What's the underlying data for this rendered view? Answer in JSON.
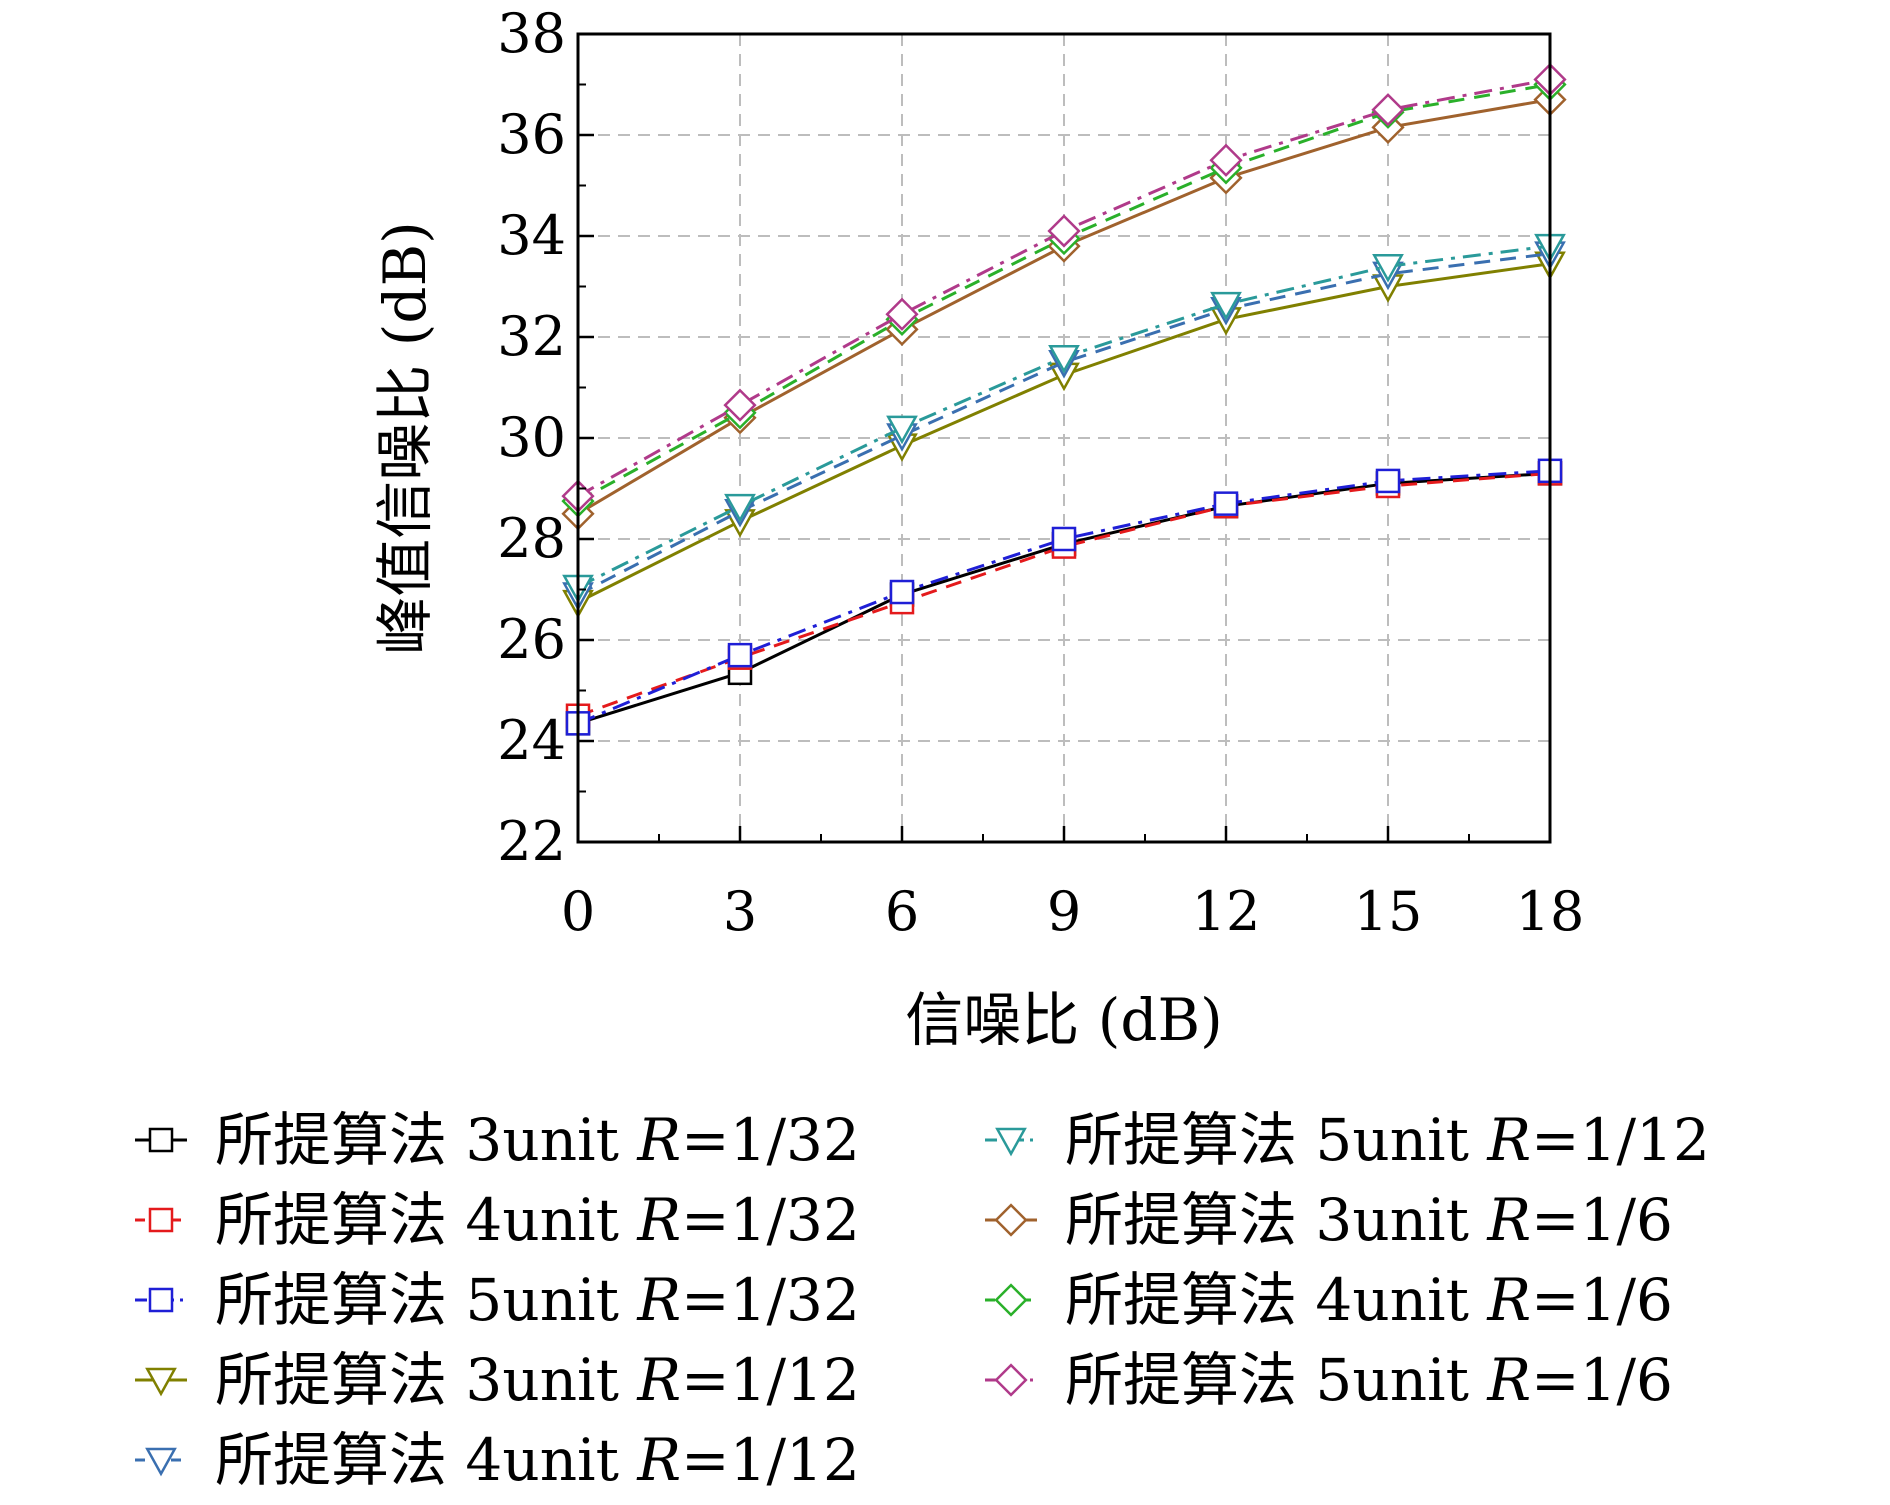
{
  "chart_data": {
    "type": "line",
    "title": "",
    "xlabel": "信噪比 (dB)",
    "ylabel": "峰值信噪比 (dB)",
    "x": [
      0,
      3,
      6,
      9,
      12,
      15,
      18
    ],
    "xticks": [
      "0",
      "3",
      "6",
      "9",
      "12",
      "15",
      "18"
    ],
    "yticks": [
      "22",
      "24",
      "26",
      "28",
      "30",
      "32",
      "34",
      "36",
      "38"
    ],
    "xlim": [
      0,
      18
    ],
    "ylim": [
      22,
      38
    ],
    "grid": true,
    "legend_position": "bottom",
    "series": [
      {
        "name": "所提算法 3unit R=1/32",
        "label_prefix": "所提算法 3unit ",
        "label_var": "R",
        "label_suffix": "=1/32",
        "color": "#000000",
        "marker": "square",
        "dash": "solid",
        "values": [
          24.35,
          25.35,
          26.9,
          27.9,
          28.65,
          29.1,
          29.3
        ]
      },
      {
        "name": "所提算法 4unit R=1/32",
        "label_prefix": "所提算法 4unit ",
        "label_var": "R",
        "label_suffix": "=1/32",
        "color": "#e41a1c",
        "marker": "square",
        "dash": "dashed",
        "values": [
          24.5,
          25.65,
          26.75,
          27.85,
          28.65,
          29.05,
          29.3
        ]
      },
      {
        "name": "所提算法 5unit R=1/32",
        "label_prefix": "所提算法 5unit ",
        "label_var": "R",
        "label_suffix": "=1/32",
        "color": "#1f1fd6",
        "marker": "square",
        "dash": "dashdot",
        "values": [
          24.35,
          25.7,
          26.95,
          28.0,
          28.7,
          29.15,
          29.35
        ]
      },
      {
        "name": "所提算法 3unit R=1/12",
        "label_prefix": "所提算法 3unit ",
        "label_var": "R",
        "label_suffix": "=1/12",
        "color": "#808000",
        "marker": "triangle-down",
        "dash": "solid",
        "values": [
          26.75,
          28.35,
          29.85,
          31.25,
          32.35,
          33.0,
          33.45
        ]
      },
      {
        "name": "所提算法 4unit R=1/12",
        "label_prefix": "所提算法 4unit ",
        "label_var": "R",
        "label_suffix": "=1/12",
        "color": "#3a6fb0",
        "marker": "triangle-down",
        "dash": "dashed",
        "values": [
          26.9,
          28.55,
          30.05,
          31.5,
          32.55,
          33.25,
          33.65
        ]
      },
      {
        "name": "所提算法 5unit R=1/12",
        "label_prefix": "所提算法 5unit ",
        "label_var": "R",
        "label_suffix": "=1/12",
        "color": "#2a9a9a",
        "marker": "triangle-down",
        "dash": "dashdot",
        "values": [
          27.05,
          28.65,
          30.2,
          31.6,
          32.65,
          33.4,
          33.8
        ]
      },
      {
        "name": "所提算法 3unit R=1/6",
        "label_prefix": "所提算法 3unit ",
        "label_var": "R",
        "label_suffix": "=1/6",
        "color": "#a0622d",
        "marker": "diamond",
        "dash": "solid",
        "values": [
          28.5,
          30.4,
          32.15,
          33.8,
          35.15,
          36.15,
          36.7
        ]
      },
      {
        "name": "所提算法 4unit R=1/6",
        "label_prefix": "所提算法 4unit ",
        "label_var": "R",
        "label_suffix": "=1/6",
        "color": "#2ab02a",
        "marker": "diamond",
        "dash": "dashed",
        "values": [
          28.75,
          30.5,
          32.35,
          33.95,
          35.35,
          36.45,
          37.0
        ]
      },
      {
        "name": "所提算法 5unit R=1/6",
        "label_prefix": "所提算法 5unit ",
        "label_var": "R",
        "label_suffix": "=1/6",
        "color": "#b03a8a",
        "marker": "diamond",
        "dash": "dashdot",
        "values": [
          28.85,
          30.65,
          32.45,
          34.1,
          35.5,
          36.5,
          37.1
        ]
      }
    ]
  }
}
